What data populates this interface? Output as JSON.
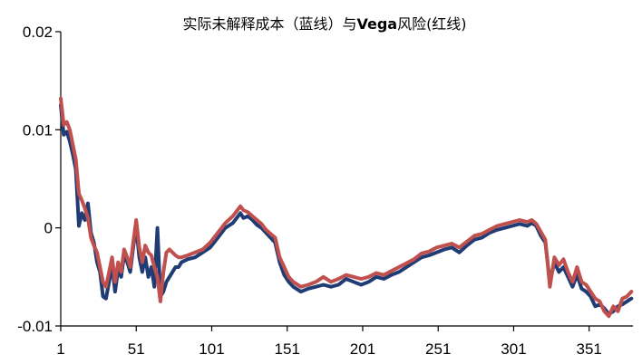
{
  "chart_data": {
    "type": "line",
    "title_parts": [
      "实际未解释成本（蓝线）与",
      "Vega",
      "风险(红线)"
    ],
    "xlabel": "",
    "ylabel": "",
    "x_ticks": [
      1,
      51,
      101,
      151,
      201,
      251,
      301,
      351
    ],
    "y_ticks": [
      "0.02",
      "0.01",
      "0",
      "-0.01"
    ],
    "xlim": [
      1,
      380
    ],
    "ylim": [
      -0.01,
      0.02
    ],
    "grid": false,
    "legend": "none",
    "x": [
      1,
      3,
      5,
      7,
      9,
      11,
      13,
      15,
      17,
      19,
      21,
      23,
      25,
      27,
      29,
      31,
      33,
      35,
      37,
      39,
      41,
      43,
      45,
      47,
      49,
      51,
      53,
      55,
      57,
      59,
      61,
      63,
      65,
      67,
      69,
      71,
      73,
      75,
      77,
      79,
      81,
      85,
      90,
      95,
      100,
      105,
      110,
      115,
      120,
      122,
      125,
      128,
      131,
      134,
      137,
      140,
      143,
      146,
      149,
      152,
      155,
      160,
      165,
      170,
      175,
      180,
      185,
      190,
      195,
      200,
      205,
      210,
      215,
      220,
      225,
      230,
      235,
      240,
      245,
      250,
      255,
      260,
      265,
      270,
      275,
      280,
      285,
      290,
      295,
      300,
      305,
      310,
      313,
      316,
      319,
      322,
      325,
      328,
      331,
      334,
      337,
      340,
      343,
      346,
      349,
      352,
      355,
      358,
      361,
      364,
      367,
      370,
      373,
      376,
      379
    ],
    "series": [
      {
        "name": "实际未解释成本",
        "color": "#1f3c75",
        "values": [
          0.0125,
          0.0095,
          0.0098,
          0.0088,
          0.0075,
          0.006,
          0.0002,
          0.0015,
          0.0008,
          0.0025,
          -0.0005,
          -0.0015,
          -0.0035,
          -0.0045,
          -0.007,
          -0.0072,
          -0.0055,
          -0.0038,
          -0.0065,
          -0.0042,
          -0.005,
          -0.0028,
          -0.0035,
          -0.0045,
          -0.002,
          0.0002,
          -0.003,
          -0.0045,
          -0.003,
          -0.005,
          -0.004,
          -0.006,
          0.0,
          -0.007,
          -0.0065,
          -0.0055,
          -0.005,
          -0.0045,
          -0.004,
          -0.004,
          -0.0035,
          -0.0032,
          -0.003,
          -0.0025,
          -0.002,
          -0.001,
          0.0,
          0.0005,
          0.0015,
          0.001,
          0.0012,
          0.0008,
          0.0003,
          0.0,
          -0.0005,
          -0.001,
          -0.0015,
          -0.0035,
          -0.0048,
          -0.0055,
          -0.006,
          -0.0065,
          -0.0062,
          -0.006,
          -0.0058,
          -0.006,
          -0.0058,
          -0.0052,
          -0.0055,
          -0.0058,
          -0.0055,
          -0.005,
          -0.0052,
          -0.0048,
          -0.0045,
          -0.004,
          -0.0035,
          -0.003,
          -0.0028,
          -0.0025,
          -0.0022,
          -0.002,
          -0.0025,
          -0.0018,
          -0.0012,
          -0.001,
          -0.0005,
          -0.0002,
          0.0,
          0.0002,
          0.0004,
          0.0002,
          0.0005,
          0.0002,
          -0.0008,
          -0.0015,
          -0.0055,
          -0.0035,
          -0.0045,
          -0.004,
          -0.005,
          -0.006,
          -0.0048,
          -0.0062,
          -0.0065,
          -0.007,
          -0.008,
          -0.0078,
          -0.0082,
          -0.0088,
          -0.0085,
          -0.008,
          -0.0078,
          -0.0075,
          -0.0072
        ]
      },
      {
        "name": "Vega风险",
        "color": "#c0504d",
        "values": [
          0.0132,
          0.0105,
          0.0108,
          0.01,
          0.0085,
          0.007,
          0.0035,
          0.0028,
          0.002,
          0.001,
          -0.001,
          -0.0018,
          -0.0025,
          -0.004,
          -0.0055,
          -0.006,
          -0.0045,
          -0.003,
          -0.0055,
          -0.0035,
          -0.0045,
          -0.0022,
          -0.003,
          -0.004,
          -0.0015,
          0.0008,
          -0.002,
          -0.0035,
          -0.0018,
          -0.0025,
          -0.0028,
          -0.004,
          -0.005,
          -0.0075,
          -0.0045,
          -0.0025,
          -0.0022,
          -0.0025,
          -0.0028,
          -0.003,
          -0.003,
          -0.0028,
          -0.0025,
          -0.0022,
          -0.0015,
          -0.0005,
          0.0005,
          0.0012,
          0.0022,
          0.0018,
          0.0016,
          0.0012,
          0.0008,
          0.0004,
          -0.0002,
          -0.0006,
          -0.001,
          -0.003,
          -0.004,
          -0.005,
          -0.0055,
          -0.006,
          -0.0058,
          -0.0055,
          -0.005,
          -0.0055,
          -0.0052,
          -0.0048,
          -0.005,
          -0.0052,
          -0.005,
          -0.0046,
          -0.0048,
          -0.0044,
          -0.004,
          -0.0036,
          -0.0032,
          -0.0026,
          -0.0024,
          -0.002,
          -0.0018,
          -0.0016,
          -0.002,
          -0.0014,
          -0.0008,
          -0.0006,
          -0.0002,
          0.0002,
          0.0004,
          0.0006,
          0.0008,
          0.0006,
          0.0008,
          0.0004,
          -0.0004,
          -0.0012,
          -0.006,
          -0.003,
          -0.0038,
          -0.0032,
          -0.0045,
          -0.0055,
          -0.004,
          -0.0055,
          -0.0058,
          -0.0065,
          -0.0072,
          -0.0075,
          -0.0085,
          -0.009,
          -0.008,
          -0.0085,
          -0.0072,
          -0.007,
          -0.0065
        ]
      }
    ]
  }
}
